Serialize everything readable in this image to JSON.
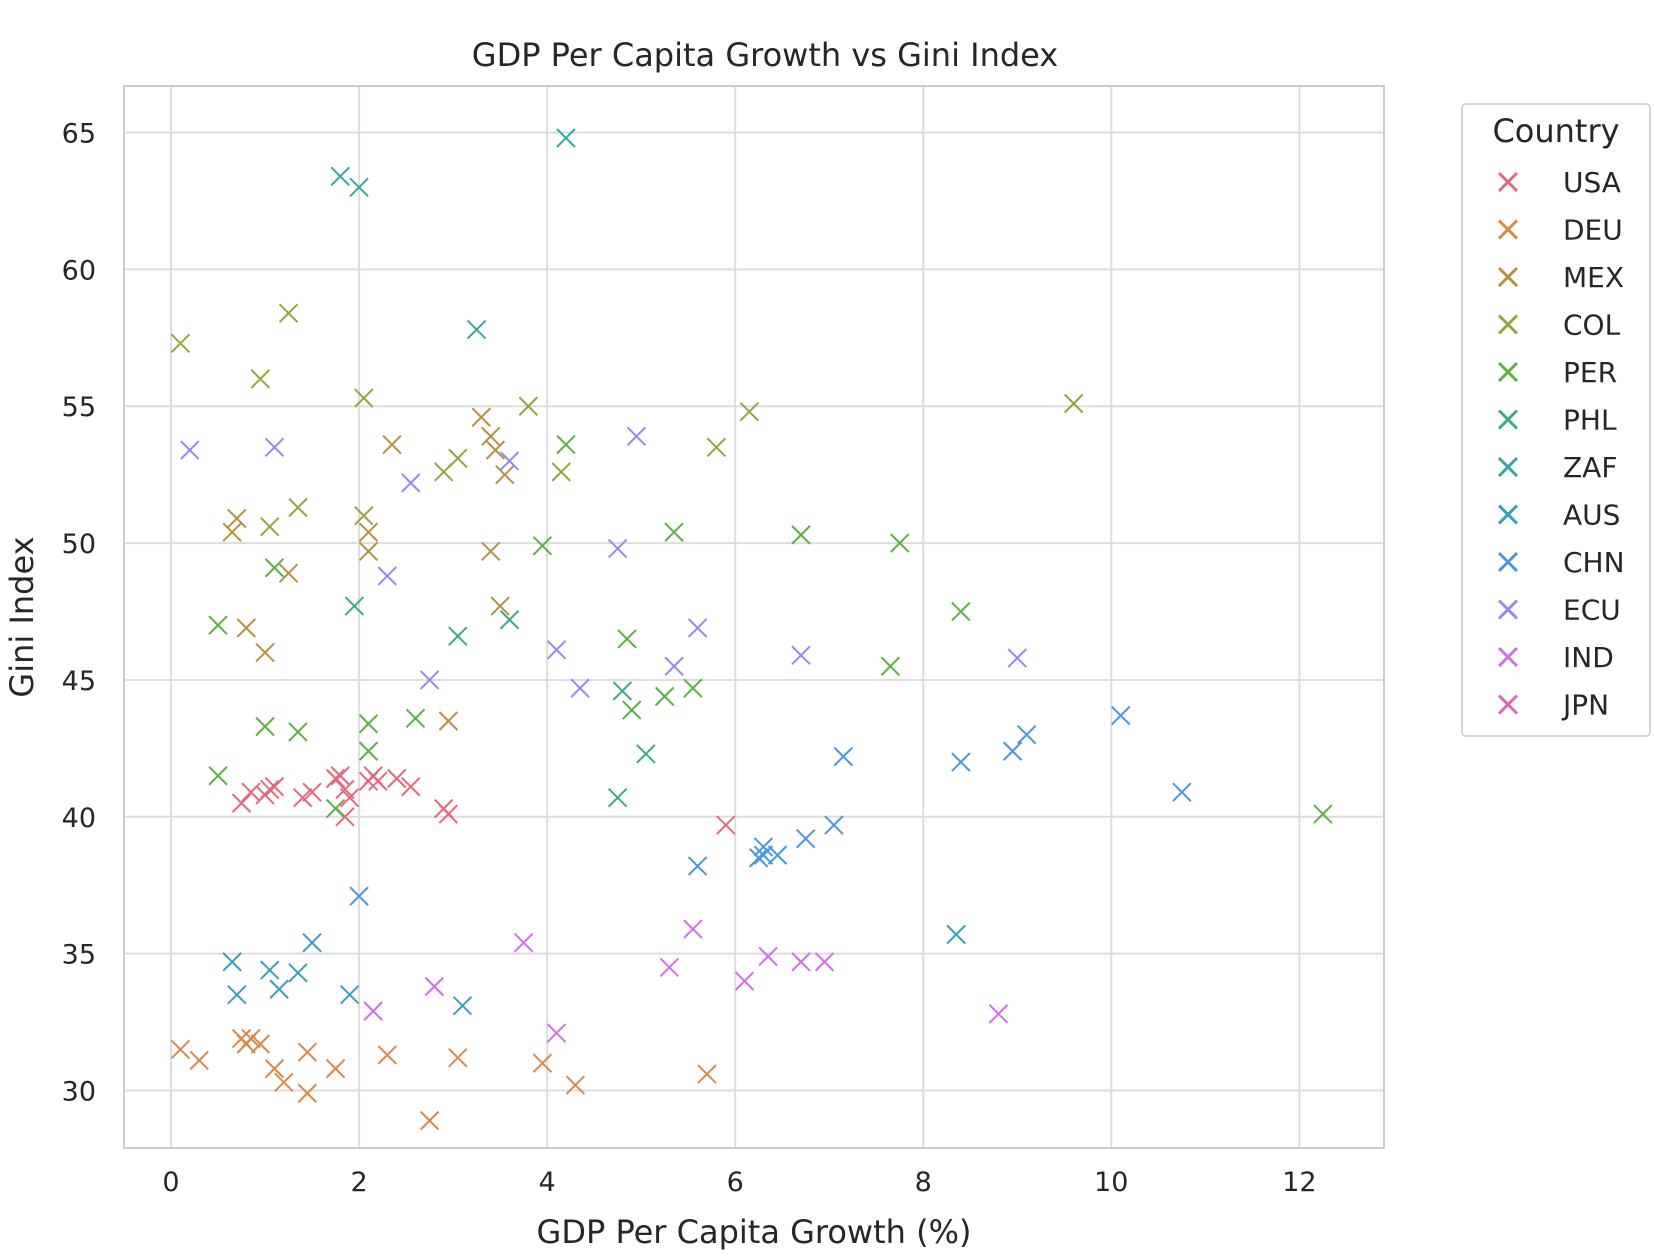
{
  "chart_data": {
    "type": "scatter",
    "title": "GDP Per Capita Growth vs Gini Index",
    "xlabel": "GDP Per Capita Growth (%)",
    "ylabel": "Gini Index",
    "xlim": [
      -0.5,
      12.9
    ],
    "ylim": [
      27.9,
      66.7
    ],
    "xticks": [
      0,
      2,
      4,
      6,
      8,
      10,
      12
    ],
    "yticks": [
      30,
      35,
      40,
      45,
      50,
      55,
      60,
      65
    ],
    "xtick_labels": [
      "0",
      "2",
      "4",
      "6",
      "8",
      "10",
      "12"
    ],
    "ytick_labels": [
      "30",
      "35",
      "40",
      "45",
      "50",
      "55",
      "60",
      "65"
    ],
    "grid": true,
    "marker": "x",
    "legend": {
      "title": "Country",
      "placement": "outside-right-top"
    },
    "series": [
      {
        "name": "USA",
        "color": "#e5677b",
        "points": [
          [
            0.75,
            40.5
          ],
          [
            0.85,
            40.9
          ],
          [
            1.0,
            40.8
          ],
          [
            1.05,
            41.0
          ],
          [
            1.1,
            41.1
          ],
          [
            1.4,
            40.7
          ],
          [
            1.5,
            40.9
          ],
          [
            1.75,
            41.4
          ],
          [
            1.8,
            41.5
          ],
          [
            1.85,
            41.0
          ],
          [
            1.9,
            40.7
          ],
          [
            2.1,
            41.3
          ],
          [
            2.15,
            41.5
          ],
          [
            2.2,
            41.3
          ],
          [
            2.4,
            41.4
          ],
          [
            2.55,
            41.1
          ],
          [
            2.9,
            40.3
          ],
          [
            2.95,
            40.1
          ],
          [
            1.85,
            40.0
          ],
          [
            5.9,
            39.7
          ]
        ]
      },
      {
        "name": "DEU",
        "color": "#d9894a",
        "points": [
          [
            0.1,
            31.5
          ],
          [
            0.3,
            31.1
          ],
          [
            0.75,
            31.9
          ],
          [
            0.8,
            31.7
          ],
          [
            0.85,
            31.9
          ],
          [
            0.95,
            31.7
          ],
          [
            1.1,
            30.8
          ],
          [
            1.2,
            30.3
          ],
          [
            1.45,
            31.4
          ],
          [
            1.45,
            29.9
          ],
          [
            1.75,
            30.8
          ],
          [
            2.3,
            31.3
          ],
          [
            2.75,
            28.9
          ],
          [
            3.05,
            31.2
          ],
          [
            3.95,
            31.0
          ],
          [
            4.3,
            30.2
          ],
          [
            5.7,
            30.6
          ]
        ]
      },
      {
        "name": "MEX",
        "color": "#b59040",
        "points": [
          [
            0.7,
            50.9
          ],
          [
            0.65,
            50.4
          ],
          [
            0.8,
            46.9
          ],
          [
            1.0,
            46.0
          ],
          [
            1.25,
            48.9
          ],
          [
            2.1,
            50.4
          ],
          [
            2.1,
            49.7
          ],
          [
            2.35,
            53.6
          ],
          [
            2.95,
            43.5
          ],
          [
            3.4,
            53.9
          ],
          [
            3.45,
            53.4
          ],
          [
            3.55,
            52.5
          ],
          [
            3.3,
            54.6
          ],
          [
            3.4,
            49.7
          ],
          [
            3.5,
            47.7
          ]
        ]
      },
      {
        "name": "COL",
        "color": "#9aa23d",
        "points": [
          [
            0.1,
            57.3
          ],
          [
            0.95,
            56.0
          ],
          [
            1.25,
            58.4
          ],
          [
            1.05,
            50.6
          ],
          [
            1.35,
            51.3
          ],
          [
            2.05,
            55.3
          ],
          [
            2.05,
            51.0
          ],
          [
            2.9,
            52.6
          ],
          [
            3.05,
            53.1
          ],
          [
            3.8,
            55.0
          ],
          [
            4.15,
            52.6
          ],
          [
            5.8,
            53.5
          ],
          [
            6.15,
            54.8
          ],
          [
            9.6,
            55.1
          ]
        ]
      },
      {
        "name": "PER",
        "color": "#5cb143",
        "points": [
          [
            0.5,
            47.0
          ],
          [
            0.5,
            41.5
          ],
          [
            1.0,
            43.3
          ],
          [
            1.1,
            49.1
          ],
          [
            1.35,
            43.1
          ],
          [
            1.75,
            40.3
          ],
          [
            2.1,
            43.4
          ],
          [
            2.1,
            42.4
          ],
          [
            2.6,
            43.6
          ],
          [
            3.95,
            49.9
          ],
          [
            4.2,
            53.6
          ],
          [
            4.85,
            46.5
          ],
          [
            4.9,
            43.9
          ],
          [
            5.25,
            44.4
          ],
          [
            5.35,
            50.4
          ],
          [
            5.55,
            44.7
          ],
          [
            6.7,
            50.3
          ],
          [
            7.65,
            45.5
          ],
          [
            7.75,
            50.0
          ],
          [
            8.4,
            47.5
          ],
          [
            12.25,
            40.1
          ]
        ]
      },
      {
        "name": "PHL",
        "color": "#3cab7e",
        "points": [
          [
            1.95,
            47.7
          ],
          [
            3.05,
            46.6
          ],
          [
            3.6,
            47.2
          ],
          [
            4.8,
            44.6
          ],
          [
            4.75,
            40.7
          ],
          [
            5.05,
            42.3
          ]
        ]
      },
      {
        "name": "ZAF",
        "color": "#3aa5a0",
        "points": [
          [
            1.8,
            63.4
          ],
          [
            2.0,
            63.0
          ],
          [
            3.25,
            57.8
          ],
          [
            4.2,
            64.8
          ]
        ]
      },
      {
        "name": "AUS",
        "color": "#3a9ec0",
        "points": [
          [
            0.65,
            34.7
          ],
          [
            0.7,
            33.5
          ],
          [
            1.05,
            34.4
          ],
          [
            1.15,
            33.7
          ],
          [
            1.35,
            34.3
          ],
          [
            1.5,
            35.4
          ],
          [
            1.9,
            33.5
          ],
          [
            3.1,
            33.1
          ],
          [
            8.35,
            35.7
          ]
        ]
      },
      {
        "name": "CHN",
        "color": "#4a95e0",
        "points": [
          [
            2.0,
            37.1
          ],
          [
            5.6,
            38.2
          ],
          [
            6.25,
            38.5
          ],
          [
            6.3,
            38.9
          ],
          [
            6.3,
            38.6
          ],
          [
            6.45,
            38.6
          ],
          [
            6.75,
            39.2
          ],
          [
            7.05,
            39.7
          ],
          [
            7.15,
            42.2
          ],
          [
            8.4,
            42.0
          ],
          [
            8.95,
            42.4
          ],
          [
            9.1,
            43.0
          ],
          [
            10.1,
            43.7
          ],
          [
            10.75,
            40.9
          ]
        ]
      },
      {
        "name": "ECU",
        "color": "#9688f0",
        "points": [
          [
            0.2,
            53.4
          ],
          [
            1.1,
            53.5
          ],
          [
            2.3,
            48.8
          ],
          [
            2.55,
            52.2
          ],
          [
            2.75,
            45.0
          ],
          [
            3.6,
            53.0
          ],
          [
            4.1,
            46.1
          ],
          [
            4.35,
            44.7
          ],
          [
            4.75,
            49.8
          ],
          [
            4.95,
            53.9
          ],
          [
            5.35,
            45.5
          ],
          [
            5.6,
            46.9
          ],
          [
            6.7,
            45.9
          ],
          [
            9.0,
            45.8
          ]
        ]
      },
      {
        "name": "IND",
        "color": "#d16ee8",
        "points": [
          [
            2.15,
            32.9
          ],
          [
            2.8,
            33.8
          ],
          [
            3.75,
            35.4
          ],
          [
            4.1,
            32.1
          ],
          [
            5.3,
            34.5
          ],
          [
            5.55,
            35.9
          ],
          [
            6.1,
            34.0
          ],
          [
            6.35,
            34.9
          ],
          [
            6.7,
            34.7
          ],
          [
            6.95,
            34.7
          ],
          [
            8.8,
            32.8
          ]
        ]
      },
      {
        "name": "JPN",
        "color": "#e563b5",
        "points": []
      }
    ]
  }
}
